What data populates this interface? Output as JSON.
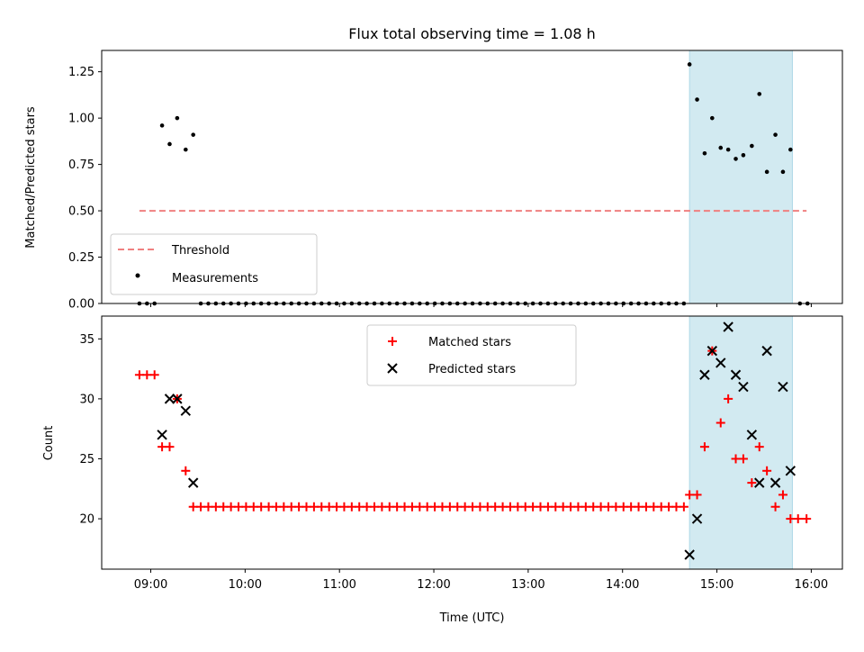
{
  "chart_data": [
    {
      "type": "scatter",
      "title": "Flux total observing time = 1.08 h",
      "ylabel": "Matched/Predicted stars",
      "xlabel": "",
      "xlim_hours": [
        8.48,
        16.33
      ],
      "ylim": [
        0,
        1.365
      ],
      "yticks": [
        0,
        0.25,
        0.5,
        0.75,
        1.0,
        1.25
      ],
      "ytick_labels": [
        "0.00",
        "0.25",
        "0.50",
        "0.75",
        "1.00",
        "1.25"
      ],
      "highlight_span_hours": [
        14.71,
        15.8
      ],
      "threshold": {
        "label": "Threshold",
        "y": 0.5,
        "x_start": 8.88,
        "x_end": 15.95,
        "color": "#f08080"
      },
      "measurements": {
        "label": "Measurements",
        "color": "#000000",
        "points": [
          [
            8.88,
            0.0
          ],
          [
            8.96,
            0.0
          ],
          [
            9.04,
            0.0
          ],
          [
            9.12,
            0.96
          ],
          [
            9.2,
            0.86
          ],
          [
            9.28,
            1.0
          ],
          [
            9.37,
            0.83
          ],
          [
            9.45,
            0.91
          ],
          [
            9.53,
            0.0
          ],
          [
            9.61,
            0.0
          ],
          [
            9.69,
            0.0
          ],
          [
            9.77,
            0.0
          ],
          [
            9.85,
            0.0
          ],
          [
            9.93,
            0.0
          ],
          [
            10.01,
            0.0
          ],
          [
            10.09,
            0.0
          ],
          [
            10.17,
            0.0
          ],
          [
            10.25,
            0.0
          ],
          [
            10.33,
            0.0
          ],
          [
            10.41,
            0.0
          ],
          [
            10.49,
            0.0
          ],
          [
            10.57,
            0.0
          ],
          [
            10.65,
            0.0
          ],
          [
            10.73,
            0.0
          ],
          [
            10.81,
            0.0
          ],
          [
            10.89,
            0.0
          ],
          [
            10.97,
            0.0
          ],
          [
            11.05,
            0.0
          ],
          [
            11.13,
            0.0
          ],
          [
            11.21,
            0.0
          ],
          [
            11.29,
            0.0
          ],
          [
            11.37,
            0.0
          ],
          [
            11.45,
            0.0
          ],
          [
            11.53,
            0.0
          ],
          [
            11.61,
            0.0
          ],
          [
            11.69,
            0.0
          ],
          [
            11.77,
            0.0
          ],
          [
            11.85,
            0.0
          ],
          [
            11.93,
            0.0
          ],
          [
            12.01,
            0.0
          ],
          [
            12.09,
            0.0
          ],
          [
            12.17,
            0.0
          ],
          [
            12.25,
            0.0
          ],
          [
            12.33,
            0.0
          ],
          [
            12.41,
            0.0
          ],
          [
            12.49,
            0.0
          ],
          [
            12.57,
            0.0
          ],
          [
            12.65,
            0.0
          ],
          [
            12.73,
            0.0
          ],
          [
            12.81,
            0.0
          ],
          [
            12.89,
            0.0
          ],
          [
            12.97,
            0.0
          ],
          [
            13.05,
            0.0
          ],
          [
            13.13,
            0.0
          ],
          [
            13.21,
            0.0
          ],
          [
            13.29,
            0.0
          ],
          [
            13.37,
            0.0
          ],
          [
            13.45,
            0.0
          ],
          [
            13.53,
            0.0
          ],
          [
            13.61,
            0.0
          ],
          [
            13.69,
            0.0
          ],
          [
            13.77,
            0.0
          ],
          [
            13.85,
            0.0
          ],
          [
            13.93,
            0.0
          ],
          [
            14.01,
            0.0
          ],
          [
            14.09,
            0.0
          ],
          [
            14.17,
            0.0
          ],
          [
            14.25,
            0.0
          ],
          [
            14.33,
            0.0
          ],
          [
            14.41,
            0.0
          ],
          [
            14.49,
            0.0
          ],
          [
            14.57,
            0.0
          ],
          [
            14.65,
            0.0
          ],
          [
            14.71,
            1.29
          ],
          [
            14.79,
            1.1
          ],
          [
            14.87,
            0.81
          ],
          [
            14.95,
            1.0
          ],
          [
            15.04,
            0.84
          ],
          [
            15.12,
            0.83
          ],
          [
            15.2,
            0.78
          ],
          [
            15.28,
            0.8
          ],
          [
            15.37,
            0.85
          ],
          [
            15.45,
            1.13
          ],
          [
            15.53,
            0.71
          ],
          [
            15.62,
            0.91
          ],
          [
            15.7,
            0.71
          ],
          [
            15.78,
            0.83
          ],
          [
            15.88,
            0.0
          ],
          [
            15.96,
            0.0
          ]
        ]
      },
      "legend": {
        "placement": "lower-left",
        "entries": [
          "Threshold",
          "Measurements"
        ]
      }
    },
    {
      "type": "scatter",
      "title": "",
      "ylabel": "Count",
      "xlabel": "Time (UTC)",
      "xlim_hours": [
        8.48,
        16.33
      ],
      "ylim": [
        15.8,
        36.9
      ],
      "yticks": [
        20,
        25,
        30,
        35
      ],
      "ytick_labels": [
        "20",
        "25",
        "30",
        "35"
      ],
      "xticks_hours": [
        9,
        10,
        11,
        12,
        13,
        14,
        15,
        16
      ],
      "xtick_labels": [
        "09:00",
        "10:00",
        "11:00",
        "12:00",
        "13:00",
        "14:00",
        "15:00",
        "16:00"
      ],
      "highlight_span_hours": [
        14.71,
        15.8
      ],
      "series": [
        {
          "name": "Matched stars",
          "marker": "plus",
          "color": "#ff0000",
          "points": [
            [
              8.88,
              32
            ],
            [
              8.96,
              32
            ],
            [
              9.04,
              32
            ],
            [
              9.12,
              26
            ],
            [
              9.2,
              26
            ],
            [
              9.28,
              30
            ],
            [
              9.37,
              24
            ],
            [
              9.45,
              21
            ],
            [
              9.53,
              21
            ],
            [
              9.61,
              21
            ],
            [
              9.69,
              21
            ],
            [
              9.77,
              21
            ],
            [
              9.85,
              21
            ],
            [
              9.93,
              21
            ],
            [
              10.01,
              21
            ],
            [
              10.09,
              21
            ],
            [
              10.17,
              21
            ],
            [
              10.25,
              21
            ],
            [
              10.33,
              21
            ],
            [
              10.41,
              21
            ],
            [
              10.49,
              21
            ],
            [
              10.57,
              21
            ],
            [
              10.65,
              21
            ],
            [
              10.73,
              21
            ],
            [
              10.81,
              21
            ],
            [
              10.89,
              21
            ],
            [
              10.97,
              21
            ],
            [
              11.05,
              21
            ],
            [
              11.13,
              21
            ],
            [
              11.21,
              21
            ],
            [
              11.29,
              21
            ],
            [
              11.37,
              21
            ],
            [
              11.45,
              21
            ],
            [
              11.53,
              21
            ],
            [
              11.61,
              21
            ],
            [
              11.69,
              21
            ],
            [
              11.77,
              21
            ],
            [
              11.85,
              21
            ],
            [
              11.93,
              21
            ],
            [
              12.01,
              21
            ],
            [
              12.09,
              21
            ],
            [
              12.17,
              21
            ],
            [
              12.25,
              21
            ],
            [
              12.33,
              21
            ],
            [
              12.41,
              21
            ],
            [
              12.49,
              21
            ],
            [
              12.57,
              21
            ],
            [
              12.65,
              21
            ],
            [
              12.73,
              21
            ],
            [
              12.81,
              21
            ],
            [
              12.89,
              21
            ],
            [
              12.97,
              21
            ],
            [
              13.05,
              21
            ],
            [
              13.13,
              21
            ],
            [
              13.21,
              21
            ],
            [
              13.29,
              21
            ],
            [
              13.37,
              21
            ],
            [
              13.45,
              21
            ],
            [
              13.53,
              21
            ],
            [
              13.61,
              21
            ],
            [
              13.69,
              21
            ],
            [
              13.77,
              21
            ],
            [
              13.85,
              21
            ],
            [
              13.93,
              21
            ],
            [
              14.01,
              21
            ],
            [
              14.09,
              21
            ],
            [
              14.17,
              21
            ],
            [
              14.25,
              21
            ],
            [
              14.33,
              21
            ],
            [
              14.41,
              21
            ],
            [
              14.49,
              21
            ],
            [
              14.57,
              21
            ],
            [
              14.65,
              21
            ],
            [
              14.71,
              22
            ],
            [
              14.79,
              22
            ],
            [
              14.87,
              26
            ],
            [
              14.95,
              34
            ],
            [
              15.04,
              28
            ],
            [
              15.12,
              30
            ],
            [
              15.2,
              25
            ],
            [
              15.28,
              25
            ],
            [
              15.37,
              23
            ],
            [
              15.45,
              26
            ],
            [
              15.53,
              24
            ],
            [
              15.62,
              21
            ],
            [
              15.7,
              22
            ],
            [
              15.78,
              20
            ],
            [
              15.86,
              20
            ],
            [
              15.95,
              20
            ]
          ]
        },
        {
          "name": "Predicted stars",
          "marker": "x",
          "color": "#000000",
          "points": [
            [
              9.12,
              27
            ],
            [
              9.2,
              30
            ],
            [
              9.28,
              30
            ],
            [
              9.37,
              29
            ],
            [
              9.45,
              23
            ],
            [
              14.71,
              17
            ],
            [
              14.79,
              20
            ],
            [
              14.87,
              32
            ],
            [
              14.95,
              34
            ],
            [
              15.04,
              33
            ],
            [
              15.12,
              36
            ],
            [
              15.2,
              32
            ],
            [
              15.28,
              31
            ],
            [
              15.37,
              27
            ],
            [
              15.45,
              23
            ],
            [
              15.53,
              34
            ],
            [
              15.62,
              23
            ],
            [
              15.7,
              31
            ],
            [
              15.78,
              24
            ]
          ]
        }
      ],
      "legend": {
        "placement": "upper-center",
        "entries": [
          "Matched stars",
          "Predicted stars"
        ]
      }
    }
  ],
  "colors": {
    "span": "#add8e6",
    "threshold": "#f08080"
  }
}
